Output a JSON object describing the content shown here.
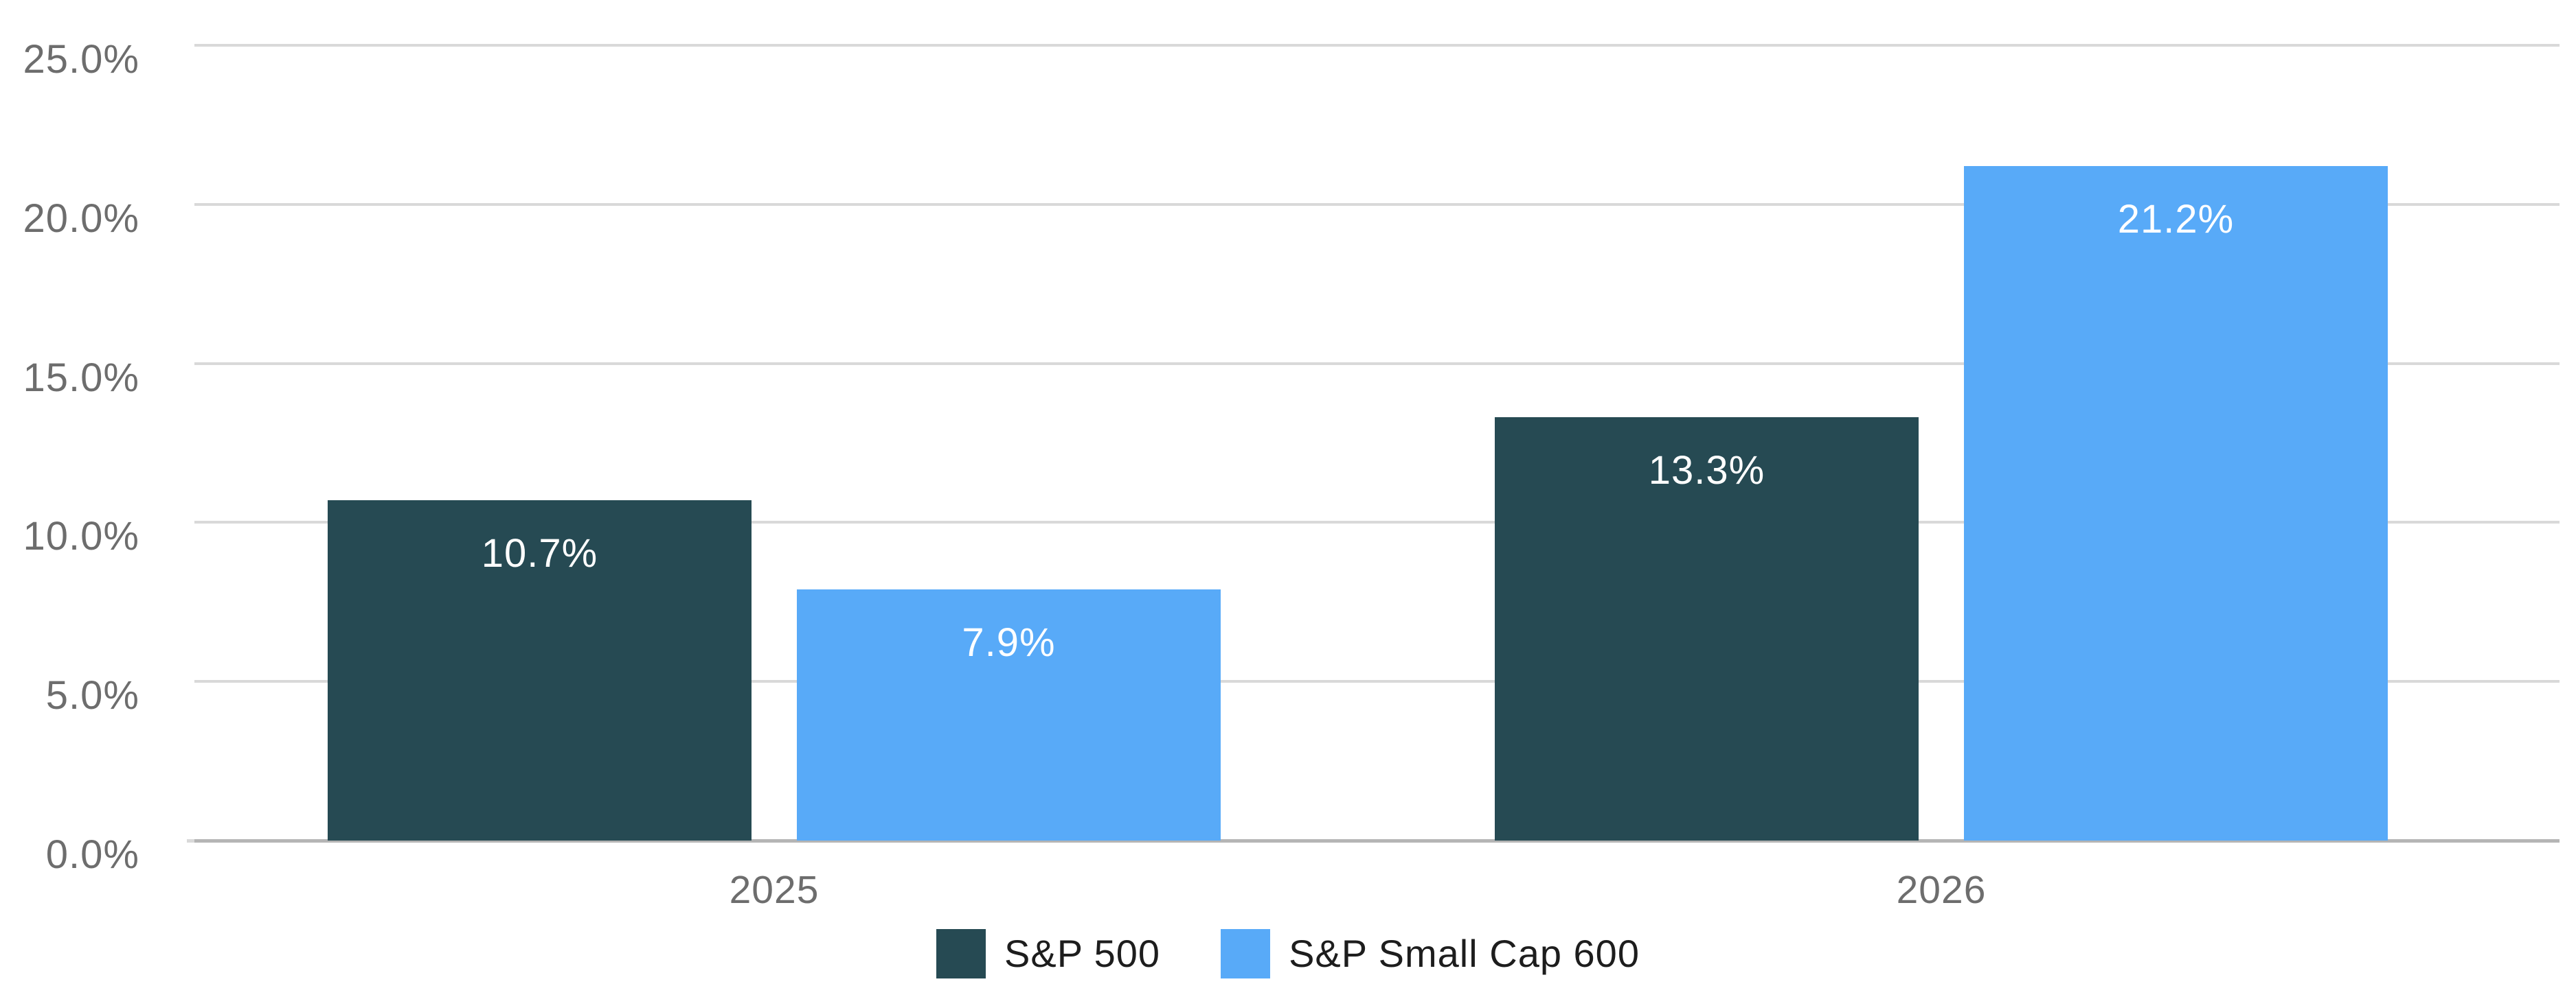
{
  "chart_data": {
    "type": "bar",
    "title": "",
    "xlabel": "",
    "ylabel": "",
    "categories": [
      "2025",
      "2026"
    ],
    "series": [
      {
        "name": "S&P 500",
        "color": "#264a53",
        "values": [
          10.7,
          13.3
        ],
        "value_labels": [
          "10.7%",
          "13.3%"
        ]
      },
      {
        "name": "S&P Small Cap 600",
        "color": "#58aaf8",
        "values": [
          7.9,
          21.2
        ],
        "value_labels": [
          "7.9%",
          "21.2%"
        ]
      }
    ],
    "y_axis": {
      "ylim": [
        0,
        25
      ],
      "tick_values": [
        0,
        5,
        10,
        15,
        20,
        25
      ],
      "tick_labels": [
        "0.0%",
        "5.0%",
        "10.0%",
        "15.0%",
        "20.0%",
        "25.0%"
      ],
      "grid": true
    },
    "legend": {
      "position": "bottom-center",
      "entries": [
        "S&P 500",
        "S&P Small Cap 600"
      ]
    },
    "colors": {
      "background": "#ffffff",
      "grid_line": "#d9d9d9",
      "axis_line": "#b5b5b5",
      "axis_text": "#6d6d6d",
      "bar_label_text": "#ffffff",
      "legend_text": "#1d1d1d"
    }
  }
}
